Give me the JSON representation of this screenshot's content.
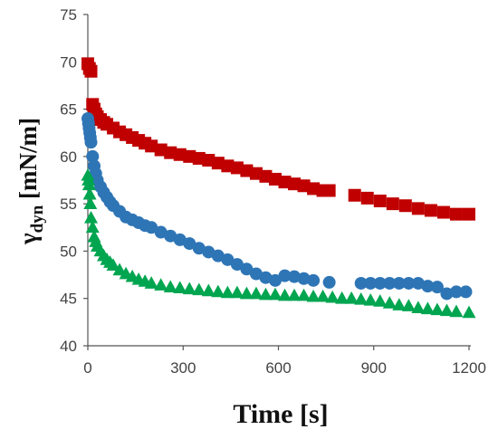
{
  "chart_data": {
    "type": "scatter",
    "title": "",
    "xlabel": "Time [s]",
    "ylabel": {
      "symbol": "γ",
      "subscript": "dyn",
      "unit": " [mN/m]"
    },
    "xlim": [
      0,
      1200
    ],
    "ylim": [
      40,
      75
    ],
    "xticks": [
      "0",
      "300",
      "600",
      "900",
      "1200"
    ],
    "yticks": [
      "40",
      "45",
      "50",
      "55",
      "60",
      "65",
      "70",
      "75"
    ],
    "grid": false,
    "legend": "none",
    "series": [
      {
        "marker": "square",
        "color": "#c00000",
        "x": [
          0,
          5,
          10,
          15,
          20,
          25,
          30,
          40,
          50,
          60,
          80,
          100,
          120,
          140,
          160,
          180,
          200,
          230,
          260,
          290,
          320,
          350,
          380,
          410,
          440,
          470,
          500,
          530,
          560,
          590,
          620,
          650,
          680,
          710,
          740,
          760,
          840,
          880,
          920,
          960,
          1000,
          1040,
          1080,
          1120,
          1160,
          1200
        ],
        "y": [
          69.8,
          69.3,
          69.0,
          65.5,
          65.0,
          64.5,
          64.2,
          63.9,
          63.6,
          63.4,
          63.0,
          62.6,
          62.3,
          62.0,
          61.7,
          61.4,
          61.1,
          60.7,
          60.4,
          60.2,
          60.0,
          59.8,
          59.6,
          59.3,
          59.0,
          58.8,
          58.5,
          58.2,
          57.9,
          57.6,
          57.3,
          57.1,
          56.9,
          56.6,
          56.4,
          56.4,
          55.9,
          55.6,
          55.3,
          55.0,
          54.8,
          54.5,
          54.3,
          54.1,
          53.9,
          53.9
        ]
      },
      {
        "marker": "circle",
        "color": "#2e75b6",
        "x": [
          0,
          2,
          4,
          6,
          8,
          10,
          15,
          20,
          25,
          30,
          40,
          50,
          60,
          70,
          80,
          100,
          120,
          140,
          160,
          180,
          200,
          230,
          260,
          290,
          320,
          350,
          380,
          410,
          440,
          470,
          500,
          530,
          560,
          590,
          620,
          650,
          680,
          710,
          760,
          860,
          890,
          920,
          950,
          980,
          1010,
          1040,
          1070,
          1100,
          1130,
          1160,
          1190
        ],
        "y": [
          64.0,
          63.5,
          63.0,
          62.5,
          62.0,
          61.5,
          60.0,
          59.0,
          58.2,
          57.5,
          56.8,
          56.2,
          55.7,
          55.2,
          54.8,
          54.2,
          53.6,
          53.3,
          53.0,
          52.7,
          52.5,
          52.0,
          51.6,
          51.2,
          50.8,
          50.3,
          49.9,
          49.5,
          49.1,
          48.6,
          48.1,
          47.6,
          47.2,
          46.9,
          47.4,
          47.3,
          47.1,
          46.9,
          46.7,
          46.6,
          46.6,
          46.6,
          46.6,
          46.6,
          46.6,
          46.6,
          46.3,
          46.2,
          45.5,
          45.7,
          45.7
        ]
      },
      {
        "marker": "triangle",
        "color": "#00a550",
        "x": [
          0,
          2,
          4,
          6,
          8,
          10,
          15,
          20,
          25,
          30,
          40,
          50,
          60,
          70,
          80,
          100,
          120,
          140,
          160,
          180,
          200,
          230,
          260,
          290,
          320,
          350,
          380,
          410,
          440,
          470,
          500,
          530,
          560,
          590,
          620,
          650,
          680,
          710,
          740,
          770,
          800,
          830,
          860,
          890,
          920,
          950,
          980,
          1010,
          1040,
          1070,
          1100,
          1130,
          1160,
          1200
        ],
        "y": [
          58.0,
          57.5,
          57.0,
          56.0,
          55.0,
          53.5,
          52.5,
          51.5,
          51.0,
          50.5,
          50.0,
          49.5,
          49.1,
          48.8,
          48.5,
          48.0,
          47.6,
          47.3,
          47.0,
          46.8,
          46.6,
          46.4,
          46.2,
          46.1,
          46.0,
          45.9,
          45.8,
          45.7,
          45.6,
          45.6,
          45.5,
          45.5,
          45.4,
          45.4,
          45.3,
          45.3,
          45.3,
          45.2,
          45.2,
          45.1,
          45.0,
          45.0,
          44.9,
          44.8,
          44.7,
          44.5,
          44.3,
          44.2,
          44.0,
          43.9,
          43.8,
          43.7,
          43.6,
          43.5
        ]
      }
    ]
  }
}
